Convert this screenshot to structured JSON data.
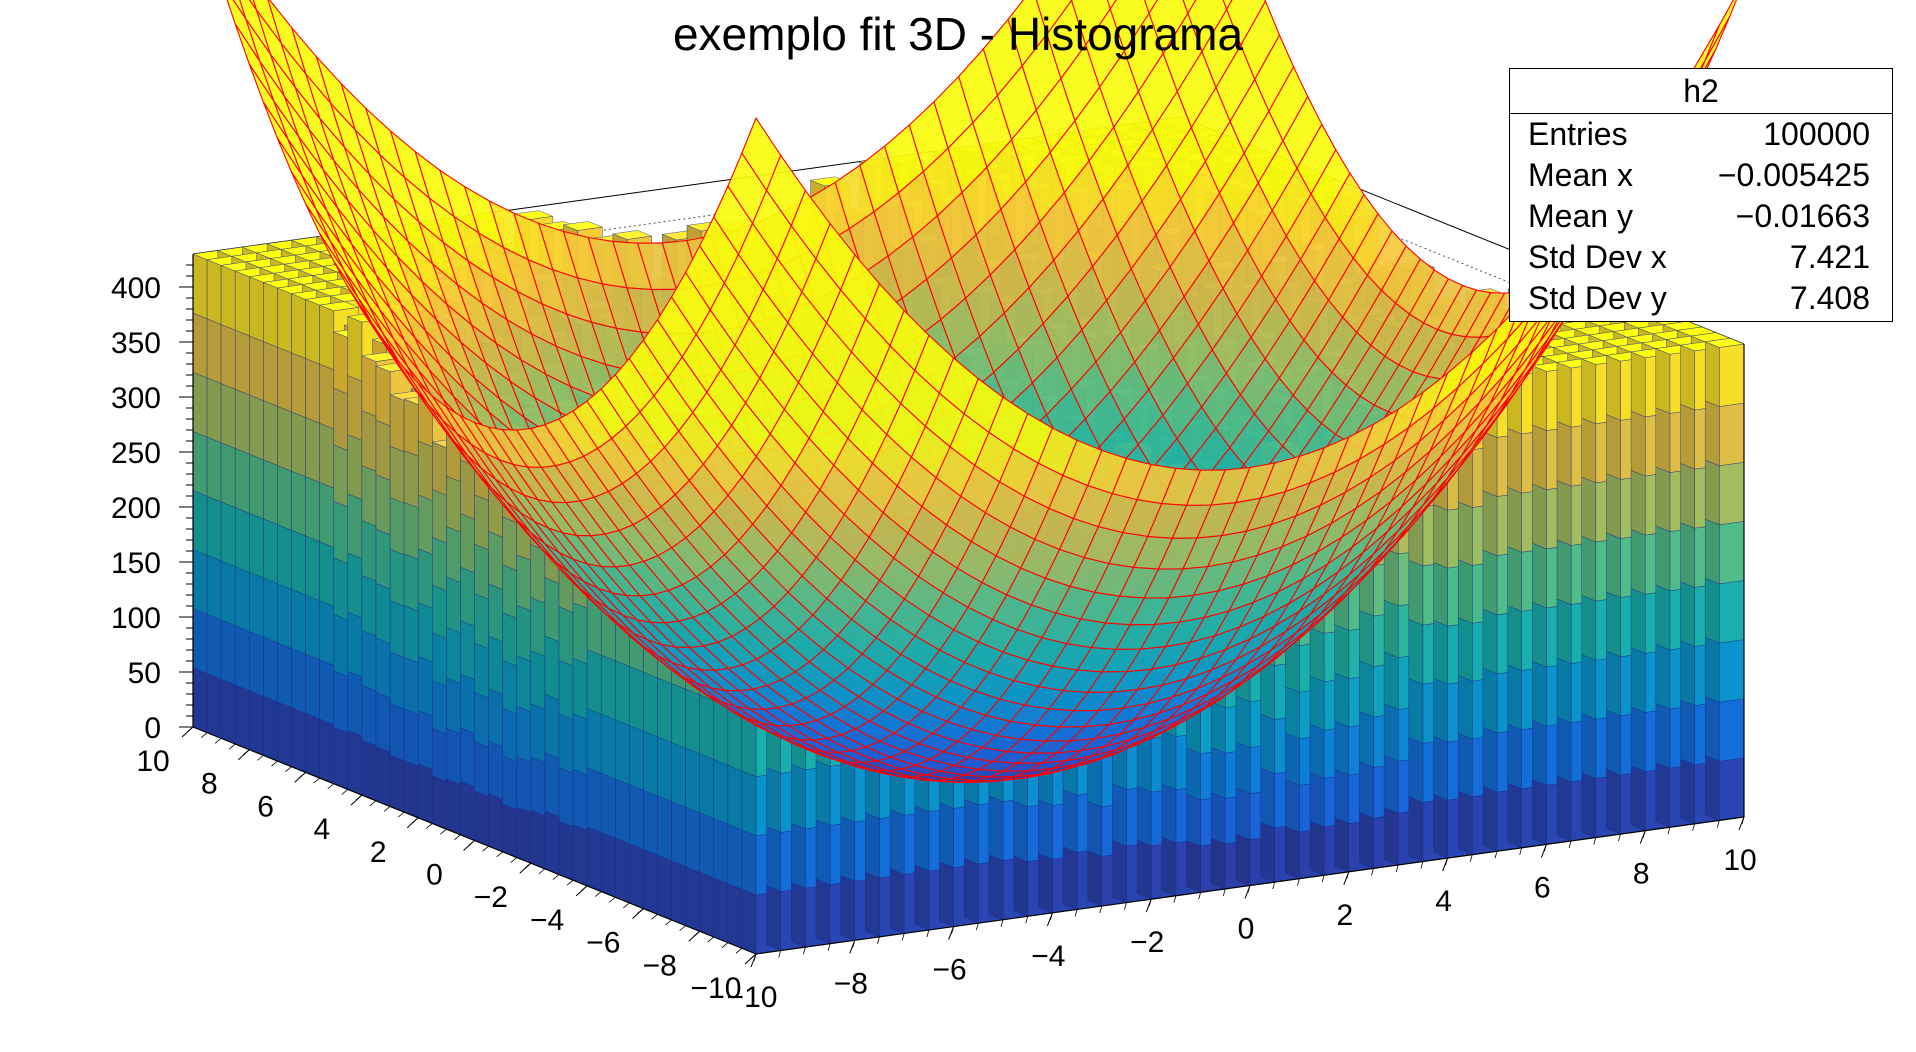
{
  "chart_data": {
    "type": "lego2d-surface",
    "title": "exemplo fit 3D - Histograma",
    "x_ticks": [
      "−10",
      "−8",
      "−6",
      "−4",
      "−2",
      "0",
      "2",
      "4",
      "6",
      "8",
      "10"
    ],
    "y_ticks": [
      "−10",
      "−8",
      "−6",
      "−4",
      "−2",
      "0",
      "2",
      "4",
      "6",
      "8",
      "10"
    ],
    "z_ticks": [
      "0",
      "50",
      "100",
      "150",
      "200",
      "250",
      "300",
      "350",
      "400"
    ],
    "xlim": [
      -10,
      10
    ],
    "ylim": [
      -10,
      10
    ],
    "zlim": [
      0,
      430
    ],
    "bins": 40,
    "histogram_model": "z = 3.8 * (x^2 + y^2)",
    "fit_model": "z = 3.8 * (x^2 + y^2)",
    "fit_color": "#ff0000",
    "palette": [
      "#352a87",
      "#1f5bd6",
      "#0f77db",
      "#0a9bc7",
      "#19b0aa",
      "#4bbc8b",
      "#96be65",
      "#d2b949",
      "#f7c93a",
      "#f9fb0e"
    ],
    "grid": true
  },
  "stats": {
    "name": "h2",
    "rows": [
      {
        "label": "Entries",
        "value": "100000"
      },
      {
        "label": "Mean x",
        "value": "−0.005425"
      },
      {
        "label": "Mean y",
        "value": "−0.01663"
      },
      {
        "label": "Std Dev x",
        "value": "7.421"
      },
      {
        "label": "Std Dev y",
        "value": "7.408"
      }
    ]
  }
}
